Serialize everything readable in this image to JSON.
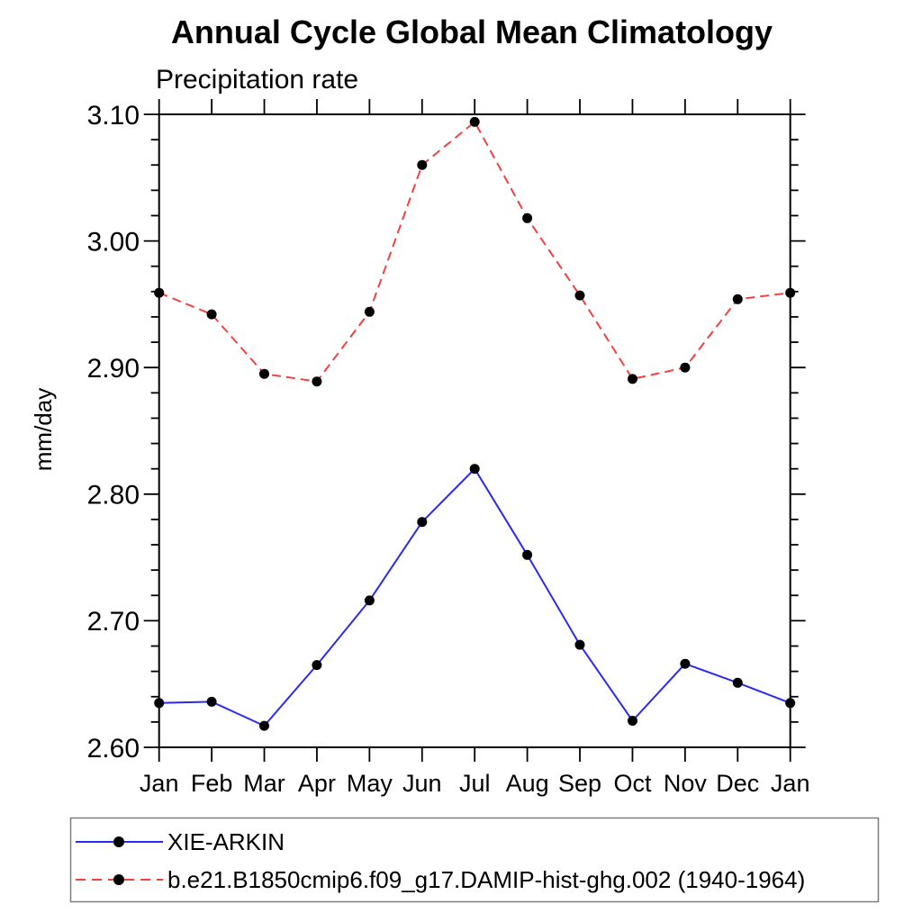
{
  "chart_data": {
    "type": "line",
    "title": "Annual Cycle Global Mean Climatology",
    "subtitle": "Precipitation rate",
    "ylabel": "mm/day",
    "xlabel": "",
    "categories": [
      "Jan",
      "Feb",
      "Mar",
      "Apr",
      "May",
      "Jun",
      "Jul",
      "Aug",
      "Sep",
      "Oct",
      "Nov",
      "Dec",
      "Jan"
    ],
    "ylim": [
      2.6,
      3.1
    ],
    "y_major_tick_step": 0.1,
    "y_minor_tick_step": 0.02,
    "y_tick_labels": [
      "2.60",
      "2.70",
      "2.80",
      "2.90",
      "3.00",
      "3.10"
    ],
    "grid": false,
    "legend_position": "bottom-left-box",
    "frame_color": "#000000",
    "series": [
      {
        "name": "XIE-ARKIN",
        "line_style": "solid",
        "line_color": "#2a2af0",
        "marker": "filled-circle",
        "marker_color": "#000000",
        "values": [
          2.635,
          2.636,
          2.617,
          2.665,
          2.716,
          2.778,
          2.82,
          2.752,
          2.681,
          2.621,
          2.666,
          2.651,
          2.635
        ]
      },
      {
        "name": "b.e21.B1850cmip6.f09_g17.DAMIP-hist-ghg.002 (1940-1964)",
        "line_style": "dashed",
        "line_color": "#f34040",
        "marker": "filled-circle",
        "marker_color": "#000000",
        "values": [
          2.959,
          2.942,
          2.895,
          2.889,
          2.944,
          3.06,
          3.094,
          3.018,
          2.957,
          2.891,
          2.9,
          2.954,
          2.959
        ]
      }
    ]
  }
}
